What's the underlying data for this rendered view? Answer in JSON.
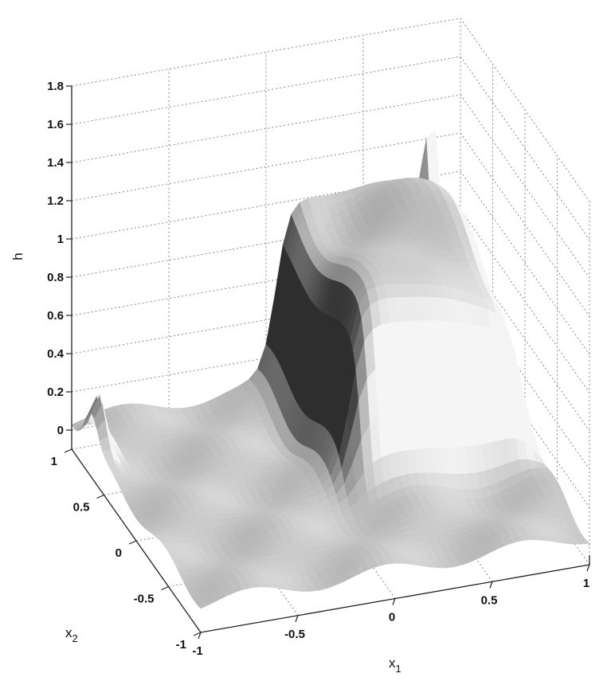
{
  "chart_data": {
    "type": "surface",
    "title": "",
    "xlabel": "x",
    "xlabel_sub": "1",
    "ylabel": "x",
    "ylabel_sub": "2",
    "zlabel": "h",
    "xlim": [
      -1,
      1
    ],
    "ylim": [
      -1,
      1
    ],
    "zlim": [
      -0.1,
      1.8
    ],
    "x_ticks": [
      -1,
      -0.5,
      0,
      0.5,
      1
    ],
    "x_tick_labels": [
      "-1",
      "-0.5",
      "0",
      "0.5",
      "1"
    ],
    "y_ticks": [
      -1,
      -0.5,
      0,
      0.5,
      1
    ],
    "y_tick_labels": [
      "-1",
      "-0.5",
      "0",
      "0.5",
      "1"
    ],
    "z_ticks": [
      0,
      0.2,
      0.4,
      0.6,
      0.8,
      1,
      1.2,
      1.4,
      1.6,
      1.8
    ],
    "z_tick_labels": [
      "0",
      "0.2",
      "0.4",
      "0.6",
      "0.8",
      "1",
      "1.2",
      "1.4",
      "1.6",
      "1.8"
    ],
    "grid": true,
    "colormap": "gray",
    "surface": {
      "description_values": {
        "base_level": 0.05,
        "plateau_level": 1.0,
        "plateau_x_range": [
          0.05,
          0.95
        ],
        "plateau_y_range": [
          -0.2,
          1.0
        ],
        "spike_peak": 1.8,
        "spike_location": [
          0.85,
          1.0
        ]
      }
    }
  }
}
